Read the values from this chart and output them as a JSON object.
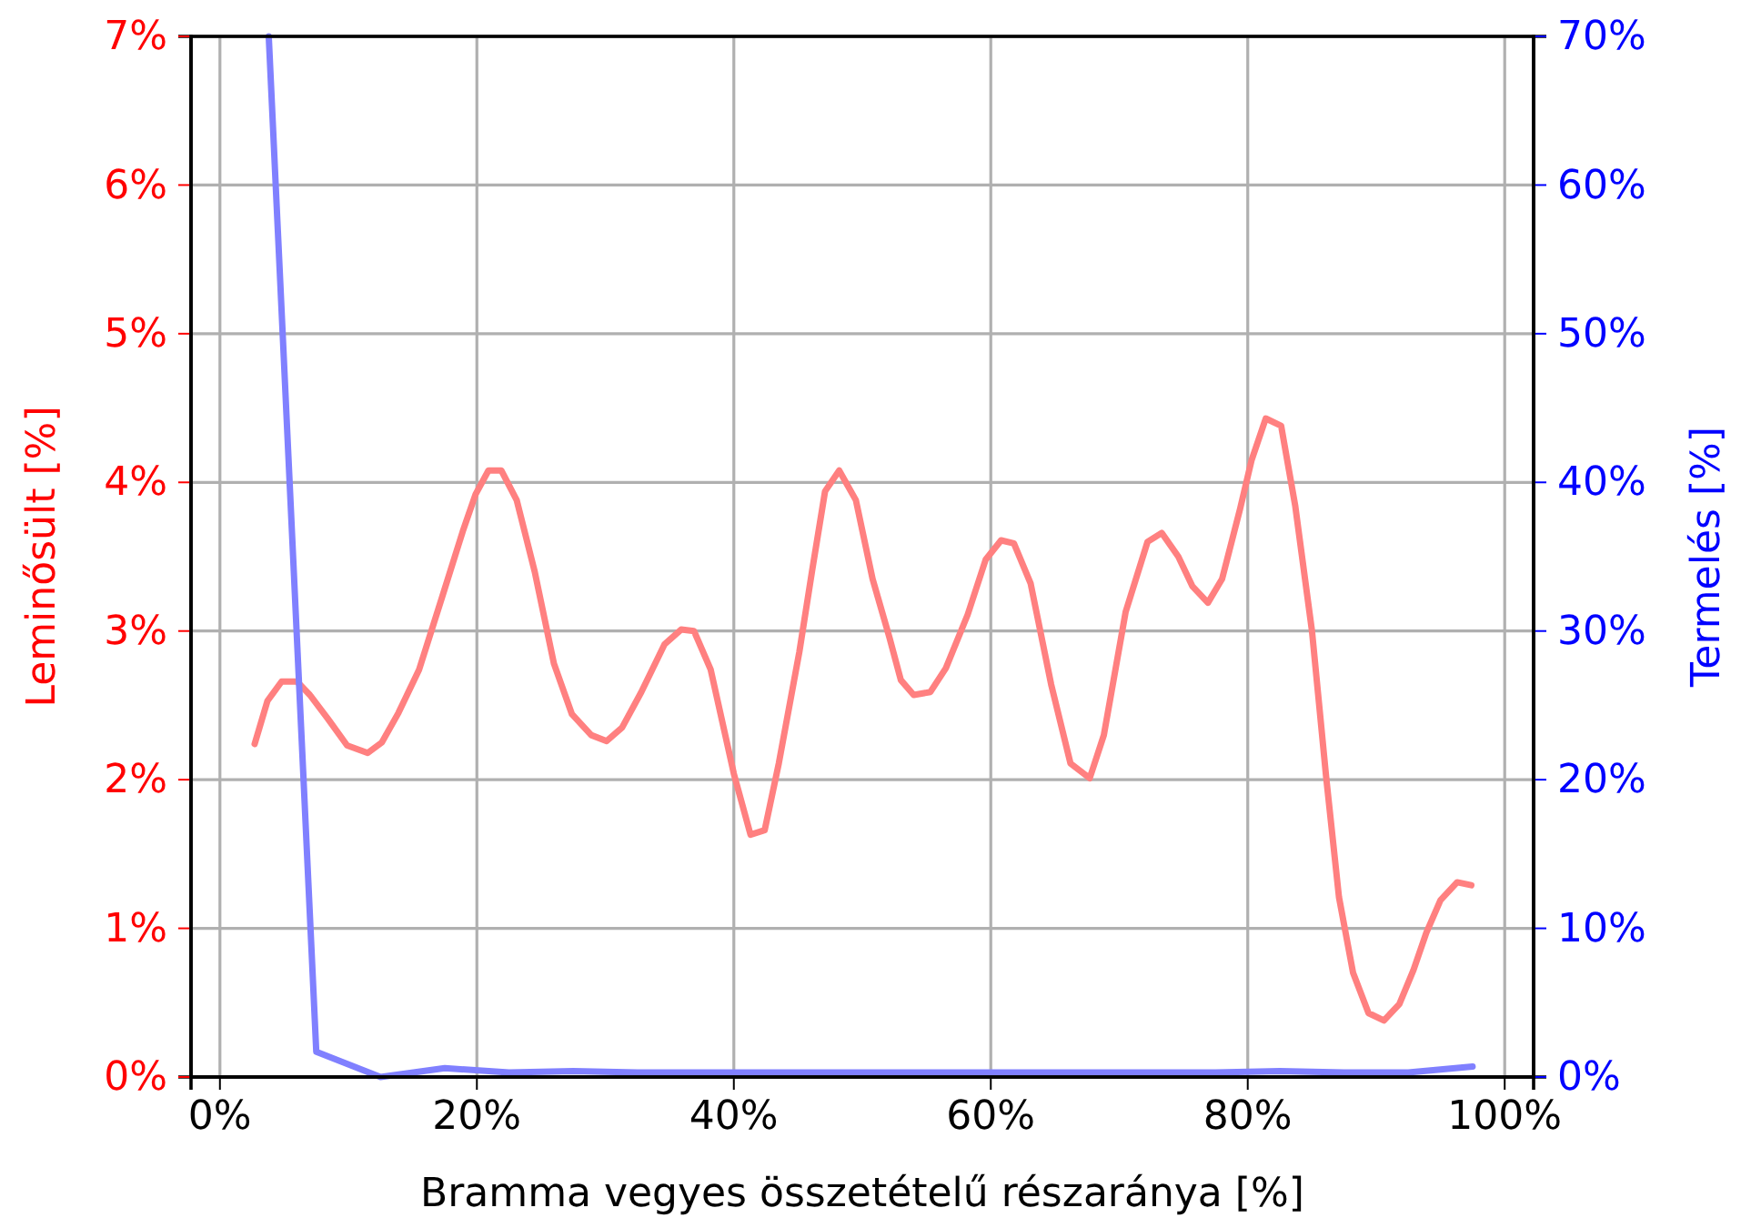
{
  "chart_data": {
    "type": "line",
    "xlabel": "Bramma vegyes összetételű részaránya [%]",
    "ylabel": "Leminősült [%]",
    "y2label": "Termelés [%]",
    "xlim": [
      -2.25,
      102.25
    ],
    "xticks": [
      {
        "value": 0,
        "label": "0%"
      },
      {
        "value": 20,
        "label": "20%"
      },
      {
        "value": 40,
        "label": "40%"
      },
      {
        "value": 60,
        "label": "60%"
      },
      {
        "value": 80,
        "label": "80%"
      },
      {
        "value": 100,
        "label": "100%"
      }
    ],
    "ylim": [
      0,
      7
    ],
    "yticks": [
      {
        "value": 0,
        "label": "0%"
      },
      {
        "value": 1,
        "label": "1%"
      },
      {
        "value": 2,
        "label": "2%"
      },
      {
        "value": 3,
        "label": "3%"
      },
      {
        "value": 4,
        "label": "4%"
      },
      {
        "value": 5,
        "label": "5%"
      },
      {
        "value": 6,
        "label": "6%"
      },
      {
        "value": 7,
        "label": "7%"
      }
    ],
    "y2lim": [
      0,
      70
    ],
    "y2ticks": [
      {
        "value": 0,
        "label": "0%"
      },
      {
        "value": 10,
        "label": "10%"
      },
      {
        "value": 20,
        "label": "20%"
      },
      {
        "value": 30,
        "label": "30%"
      },
      {
        "value": 40,
        "label": "40%"
      },
      {
        "value": 50,
        "label": "50%"
      },
      {
        "value": 60,
        "label": "60%"
      },
      {
        "value": 70,
        "label": "70%"
      }
    ],
    "grid": true,
    "series": [
      {
        "color": "#ff8080",
        "x": [
          2.7,
          3.7,
          4.8,
          6.0,
          7.0,
          8.4,
          9.9,
          11.5,
          12.6,
          13.9,
          15.5,
          17.3,
          18.9,
          19.9,
          20.9,
          21.9,
          23.1,
          24.5,
          26.0,
          27.4,
          28.9,
          30.1,
          31.3,
          32.8,
          34.6,
          35.9,
          36.9,
          38.2,
          40.0,
          41.3,
          42.4,
          43.5,
          45.1,
          46.1,
          47.1,
          48.2,
          49.5,
          50.8,
          52.1,
          53.0,
          54.0,
          55.3,
          56.5,
          58.2,
          59.6,
          60.8,
          61.8,
          63.1,
          64.7,
          66.2,
          67.7,
          68.8,
          70.5,
          72.2,
          73.3,
          74.6,
          75.7,
          76.9,
          78.0,
          79.4,
          80.3,
          81.4,
          82.6,
          83.7,
          85.0,
          86.1,
          87.1,
          88.2,
          89.4,
          90.6,
          91.8,
          92.9,
          93.9,
          95.0,
          96.3,
          97.4
        ],
        "values": [
          2.24,
          2.53,
          2.66,
          2.66,
          2.57,
          2.41,
          2.23,
          2.18,
          2.25,
          2.45,
          2.74,
          3.23,
          3.67,
          3.92,
          4.08,
          4.08,
          3.88,
          3.4,
          2.78,
          2.44,
          2.3,
          2.26,
          2.35,
          2.59,
          2.91,
          3.01,
          3.0,
          2.74,
          2.04,
          1.63,
          1.66,
          2.11,
          2.86,
          3.41,
          3.94,
          4.08,
          3.88,
          3.35,
          2.96,
          2.67,
          2.57,
          2.59,
          2.75,
          3.11,
          3.48,
          3.61,
          3.59,
          3.32,
          2.64,
          2.11,
          2.01,
          2.3,
          3.13,
          3.6,
          3.66,
          3.5,
          3.3,
          3.19,
          3.35,
          3.82,
          4.15,
          4.43,
          4.38,
          3.84,
          3.0,
          2.02,
          1.21,
          0.7,
          0.43,
          0.38,
          0.49,
          0.72,
          0.97,
          1.19,
          1.31,
          1.29
        ]
      },
      {
        "color": "#8080ff",
        "axis": "y2",
        "x": [
          3.8,
          7.5,
          12.5,
          17.5,
          22.5,
          27.5,
          32.5,
          37.5,
          42.5,
          47.5,
          52.5,
          57.5,
          62.5,
          67.5,
          72.5,
          77.5,
          82.5,
          87.5,
          92.5,
          97.5
        ],
        "values": [
          70,
          1.7,
          0,
          0.6,
          0.3,
          0.4,
          0.3,
          0.3,
          0.3,
          0.3,
          0.3,
          0.3,
          0.3,
          0.3,
          0.3,
          0.3,
          0.4,
          0.3,
          0.3,
          0.7
        ]
      }
    ]
  }
}
